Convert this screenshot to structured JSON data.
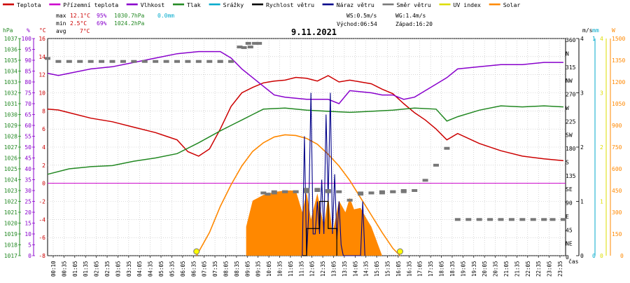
{
  "chart_data": {
    "type": "line",
    "title": "9.11.2021",
    "legend": [
      {
        "label": "Teplota",
        "color": "#cc0000"
      },
      {
        "label": "Přízemní teplota",
        "color": "#cc00cc"
      },
      {
        "label": "Vlhkost",
        "color": "#8800cc"
      },
      {
        "label": "Tlak",
        "color": "#228822"
      },
      {
        "label": "Srážky",
        "color": "#00aacc"
      },
      {
        "label": "Rychlost větru",
        "color": "#000000"
      },
      {
        "label": "Náraz větru",
        "color": "#000088"
      },
      {
        "label": "Směr větru",
        "color": "#777777"
      },
      {
        "label": "UV index",
        "color": "#dddd00"
      },
      {
        "label": "Solar",
        "color": "#ff8800"
      }
    ],
    "stats": {
      "max_label": "max",
      "max_temp": "12.1°C",
      "max_hum": "95%",
      "max_press": "1030.7hPa",
      "max_rain": "0.0mm",
      "min_label": "min",
      "min_temp": "2.5°C",
      "min_hum": "69%",
      "min_press": "1024.2hPa",
      "avg_label": "avg",
      "avg_temp": "7°C"
    },
    "wind_info": {
      "ws": "WS:0.5m/s",
      "wg": "WG:1.4m/s",
      "sunrise": "Východ:06:54",
      "sunset": "Západ:16:20"
    },
    "axes": {
      "hpa": {
        "unit": "hPa",
        "ticks": [
          "1037",
          "1036",
          "1035",
          "1034",
          "1033",
          "1032",
          "1031",
          "1030",
          "1029",
          "1028",
          "1027",
          "1026",
          "1025",
          "1024",
          "1023",
          "1022",
          "1021",
          "1020",
          "1019",
          "1018",
          "1017"
        ],
        "range": [
          1017,
          1037
        ]
      },
      "percent": {
        "unit": "%",
        "ticks": [
          "100",
          "95",
          "90",
          "85",
          "80",
          "75",
          "70",
          "65",
          "60",
          "55",
          "50",
          "45",
          "40",
          "35",
          "30",
          "25",
          "20",
          "15",
          "10",
          "5",
          "0"
        ],
        "range": [
          0,
          100
        ]
      },
      "celsius": {
        "unit": "°C",
        "ticks": [
          "16",
          "14",
          "12",
          "10",
          "8",
          "6",
          "4",
          "2",
          "0",
          "-2",
          "-4",
          "-6",
          "-8"
        ],
        "range": [
          -8,
          16
        ]
      },
      "direction": {
        "ticks": [
          "360",
          "N",
          "315",
          "NW",
          "270",
          "W",
          "225",
          "SW",
          "180",
          "S",
          "135",
          "SE",
          "90",
          "E",
          "45",
          "NE",
          "0"
        ]
      },
      "ms": {
        "unit": "m/s",
        "ticks": [
          "4",
          "3",
          "2",
          "1",
          "0"
        ],
        "range": [
          0,
          4
        ]
      },
      "mm": {
        "unit": "mm",
        "ticks": [
          "1",
          "0"
        ]
      },
      "uv": {
        "unit": "UV",
        "ticks": [
          "4",
          "3",
          "2",
          "1",
          "0"
        ]
      },
      "watt": {
        "unit": "W",
        "ticks": [
          "1500",
          "1350",
          "1200",
          "1050",
          "900",
          "750",
          "600",
          "450",
          "300",
          "150",
          "0"
        ],
        "range": [
          0,
          1500
        ]
      },
      "x_label": "čas",
      "x_ticks": [
        "00:10",
        "00:35",
        "01:05",
        "01:35",
        "02:05",
        "02:35",
        "03:05",
        "03:35",
        "04:05",
        "04:35",
        "05:05",
        "05:35",
        "06:05",
        "06:35",
        "07:05",
        "07:35",
        "08:05",
        "08:35",
        "09:05",
        "09:35",
        "10:05",
        "10:35",
        "11:05",
        "11:35",
        "12:05",
        "12:35",
        "13:05",
        "13:35",
        "14:05",
        "14:35",
        "15:05",
        "15:35",
        "16:05",
        "16:35",
        "17:05",
        "17:35",
        "18:05",
        "18:35",
        "19:05",
        "19:35",
        "20:05",
        "20:35",
        "21:05",
        "21:35",
        "22:05",
        "22:35",
        "23:05",
        "23:35"
      ]
    },
    "series": [
      {
        "name": "Teplota",
        "color": "#cc0000",
        "axis": "celsius",
        "x": [
          0,
          0.5,
          1,
          2,
          3,
          4,
          5,
          5.5,
          6,
          6.5,
          7,
          7.5,
          8,
          8.5,
          9,
          9.5,
          10,
          10.5,
          11,
          11.5,
          12,
          12.5,
          13,
          13.5,
          14,
          14.5,
          15,
          15.5,
          16,
          16.5,
          17,
          17.5,
          18,
          18.5,
          19,
          20,
          21,
          22,
          23,
          23.9
        ],
        "y": [
          8.2,
          8.1,
          7.8,
          7.2,
          6.8,
          6.2,
          5.6,
          5.2,
          4.8,
          3.5,
          3.0,
          3.8,
          6.0,
          8.5,
          10.0,
          10.6,
          11.1,
          11.3,
          11.4,
          11.7,
          11.6,
          11.3,
          11.9,
          11.2,
          11.4,
          11.2,
          11.0,
          10.4,
          9.9,
          8.8,
          7.8,
          7.0,
          6.0,
          4.8,
          5.5,
          4.4,
          3.6,
          3.0,
          2.7,
          2.5
        ]
      },
      {
        "name": "Vlhkost",
        "color": "#8800cc",
        "axis": "percent",
        "x": [
          0,
          0.5,
          1,
          2,
          3,
          4,
          5,
          6,
          7,
          8,
          8.5,
          9,
          9.5,
          10,
          10.5,
          11,
          12,
          12.5,
          13,
          13.5,
          14,
          15,
          15.5,
          16,
          16.5,
          17,
          17.5,
          18,
          18.5,
          19,
          20,
          21,
          22,
          23,
          23.9
        ],
        "y": [
          84,
          83,
          84,
          86,
          87,
          89,
          91,
          93,
          94,
          94,
          91,
          86,
          82,
          78,
          74,
          73,
          72,
          72,
          72,
          70,
          76,
          75,
          74,
          74,
          72,
          73,
          76,
          79,
          82,
          86,
          87,
          88,
          88,
          89,
          89
        ]
      },
      {
        "name": "Tlak",
        "color": "#228822",
        "axis": "hpa",
        "x": [
          0,
          1,
          2,
          3,
          4,
          5,
          6,
          7,
          8,
          8.5,
          9,
          9.5,
          10,
          11,
          12,
          13,
          14,
          15,
          16,
          17,
          18,
          18.5,
          19,
          20,
          21,
          22,
          23,
          23.9
        ],
        "y": [
          1024.5,
          1025.0,
          1025.2,
          1025.3,
          1025.7,
          1026.0,
          1026.4,
          1027.4,
          1028.5,
          1029.0,
          1029.5,
          1030.0,
          1030.5,
          1030.6,
          1030.4,
          1030.3,
          1030.2,
          1030.3,
          1030.4,
          1030.6,
          1030.5,
          1029.4,
          1029.8,
          1030.4,
          1030.8,
          1030.7,
          1030.8,
          1030.7
        ]
      }
    ],
    "wind_speed": {
      "name": "Rychlost větru",
      "color": "#000000",
      "x": [
        11.8,
        12.0,
        12.2,
        12.4,
        12.6,
        12.8,
        13.0,
        13.2,
        13.4
      ],
      "y": [
        0,
        0.5,
        0.5,
        0.5,
        1.0,
        1.0,
        0.5,
        0.5,
        0
      ]
    },
    "wind_gust": {
      "name": "Náraz větru",
      "color": "#000088",
      "x": [
        11.8,
        11.9,
        12.0,
        12.1,
        12.2,
        12.3,
        12.4,
        12.5,
        12.6,
        12.7,
        12.8,
        12.9,
        13.0,
        13.1,
        13.2,
        13.3,
        13.4,
        13.5,
        13.6,
        13.7,
        14.5,
        14.6,
        14.7
      ],
      "y": [
        0,
        2.2,
        0,
        0.8,
        3.0,
        0.4,
        0.4,
        1.0,
        0.4,
        1.4,
        0.4,
        2.6,
        1.0,
        3.0,
        0.4,
        1.5,
        0.3,
        1.0,
        0.2,
        0,
        0,
        1.0,
        0
      ]
    },
    "wind_direction": {
      "name": "Směr větru",
      "color": "#777777",
      "x": [
        0,
        1,
        2,
        3,
        4,
        5,
        6,
        7,
        8,
        8.5,
        9.1,
        9.4,
        9.6,
        9.8,
        10.2,
        10.5,
        11,
        11.5,
        12,
        12.5,
        13,
        13.5,
        14,
        14.5,
        15,
        15.5,
        16,
        16.5,
        17,
        17.5,
        18,
        18.5,
        19,
        20,
        21,
        22,
        23,
        23.9
      ],
      "y": [
        327,
        322,
        322,
        322,
        322,
        322,
        322,
        322,
        322,
        322,
        345,
        346,
        352,
        352,
        102,
        104,
        106,
        106,
        106,
        110,
        108,
        106,
        92,
        102,
        104,
        104,
        106,
        106,
        108,
        125,
        150,
        178,
        60,
        60,
        60,
        60,
        60,
        60
      ]
    },
    "solar": {
      "name": "Solar",
      "color": "#ff8800",
      "x": [
        6.9,
        7.5,
        8,
        8.5,
        9,
        9.5,
        10,
        10.5,
        11,
        11.5,
        12,
        12.5,
        13,
        13.5,
        14,
        14.5,
        15,
        15.5,
        16,
        16.33
      ],
      "y": [
        0,
        160,
        340,
        490,
        620,
        720,
        780,
        820,
        835,
        830,
        810,
        770,
        700,
        620,
        520,
        400,
        280,
        160,
        50,
        0
      ]
    },
    "solar_measured": {
      "name": "Solar",
      "x": [
        9.2,
        9.5,
        10,
        10.5,
        11,
        11.5,
        11.8,
        12,
        12.2,
        12.5,
        12.8,
        13,
        13.2,
        13.5,
        13.8,
        14,
        14.2,
        14.5,
        14.8,
        15,
        15.2,
        15.5
      ],
      "y": [
        200,
        380,
        420,
        440,
        450,
        450,
        300,
        440,
        250,
        430,
        200,
        410,
        150,
        380,
        300,
        400,
        320,
        330,
        250,
        200,
        120,
        0
      ]
    },
    "sun_markers": {
      "sunrise_hour": 6.9,
      "sunset_hour": 16.33
    }
  }
}
